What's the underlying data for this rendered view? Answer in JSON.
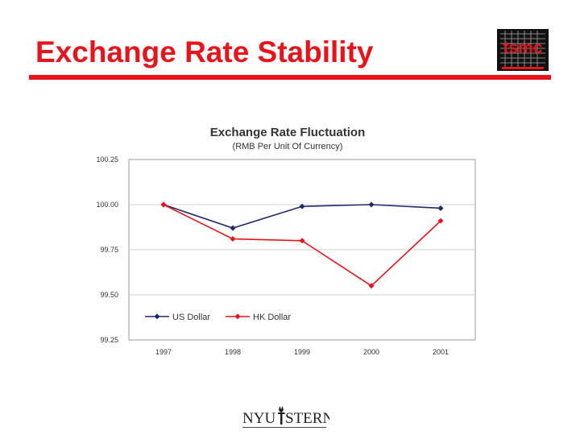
{
  "slide": {
    "title": "Exchange Rate Stability"
  },
  "logo": {
    "text": "tsmc"
  },
  "footer": {
    "logo_text_left": "NYU",
    "logo_text_right": "STERN"
  },
  "colors": {
    "title": "#e8141b",
    "us_dollar": "#1f2a6b",
    "hk_dollar": "#e8141b"
  },
  "chart_data": {
    "type": "line",
    "title": "Exchange Rate Fluctuation",
    "subtitle": "(RMB Per Unit Of Currency)",
    "xlabel": "",
    "ylabel": "",
    "categories": [
      "1997",
      "1998",
      "1999",
      "2000",
      "2001"
    ],
    "ylim": [
      99.25,
      100.25
    ],
    "yticks": [
      100.25,
      100.0,
      99.75,
      99.5,
      99.25
    ],
    "ytick_labels": [
      "100.25",
      "100.00",
      "99.75",
      "99.50",
      "99.25"
    ],
    "grid": true,
    "legend_position": "bottom-left",
    "series": [
      {
        "name": "US Dollar",
        "color": "#1f2a6b",
        "marker": "diamond",
        "values": [
          100.0,
          99.87,
          99.99,
          100.0,
          99.98
        ]
      },
      {
        "name": "HK Dollar",
        "color": "#e8141b",
        "marker": "diamond",
        "values": [
          100.0,
          99.81,
          99.8,
          99.55,
          99.91
        ]
      }
    ]
  }
}
